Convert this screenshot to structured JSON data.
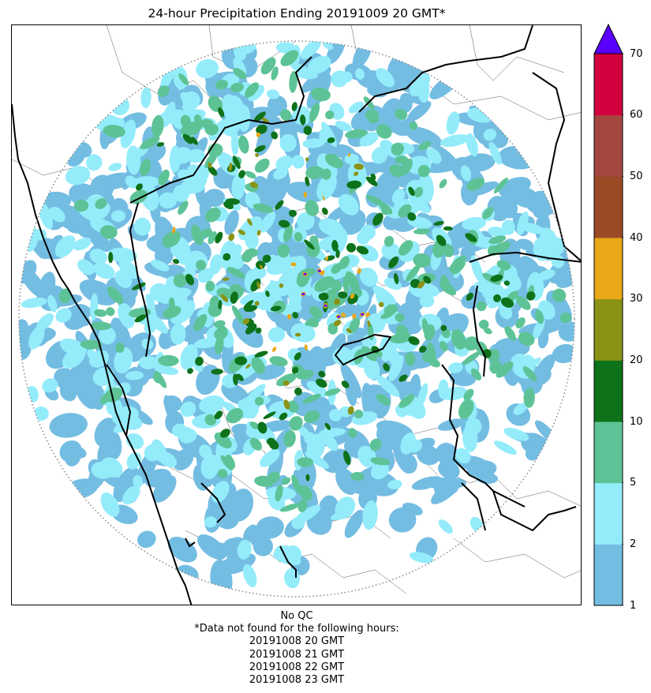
{
  "title": "24-hour Precipitation Ending 20191009 20 GMT*",
  "colorbar": {
    "ticks": [
      "1",
      "2",
      "5",
      "10",
      "20",
      "30",
      "40",
      "50",
      "60",
      "70"
    ],
    "bins": [
      {
        "color": "#74bde2"
      },
      {
        "color": "#94ecfb"
      },
      {
        "color": "#5dc396"
      },
      {
        "color": "#0e721a"
      },
      {
        "color": "#8a9315"
      },
      {
        "color": "#e8a818"
      },
      {
        "color": "#9b4a26"
      },
      {
        "color": "#a44740"
      },
      {
        "color": "#d2003f"
      }
    ],
    "extend_color": "#5a00ff"
  },
  "footer": {
    "qc": "No QC",
    "note": "*Data not found for the following hours:",
    "hours": [
      "20191008 20 GMT",
      "20191008 21 GMT",
      "20191008 22 GMT",
      "20191008 23 GMT"
    ]
  },
  "map": {
    "radar_range_ring": "dotted",
    "features": [
      "coastline",
      "state-borders",
      "district-borders",
      "radar-coverage-circle"
    ]
  }
}
